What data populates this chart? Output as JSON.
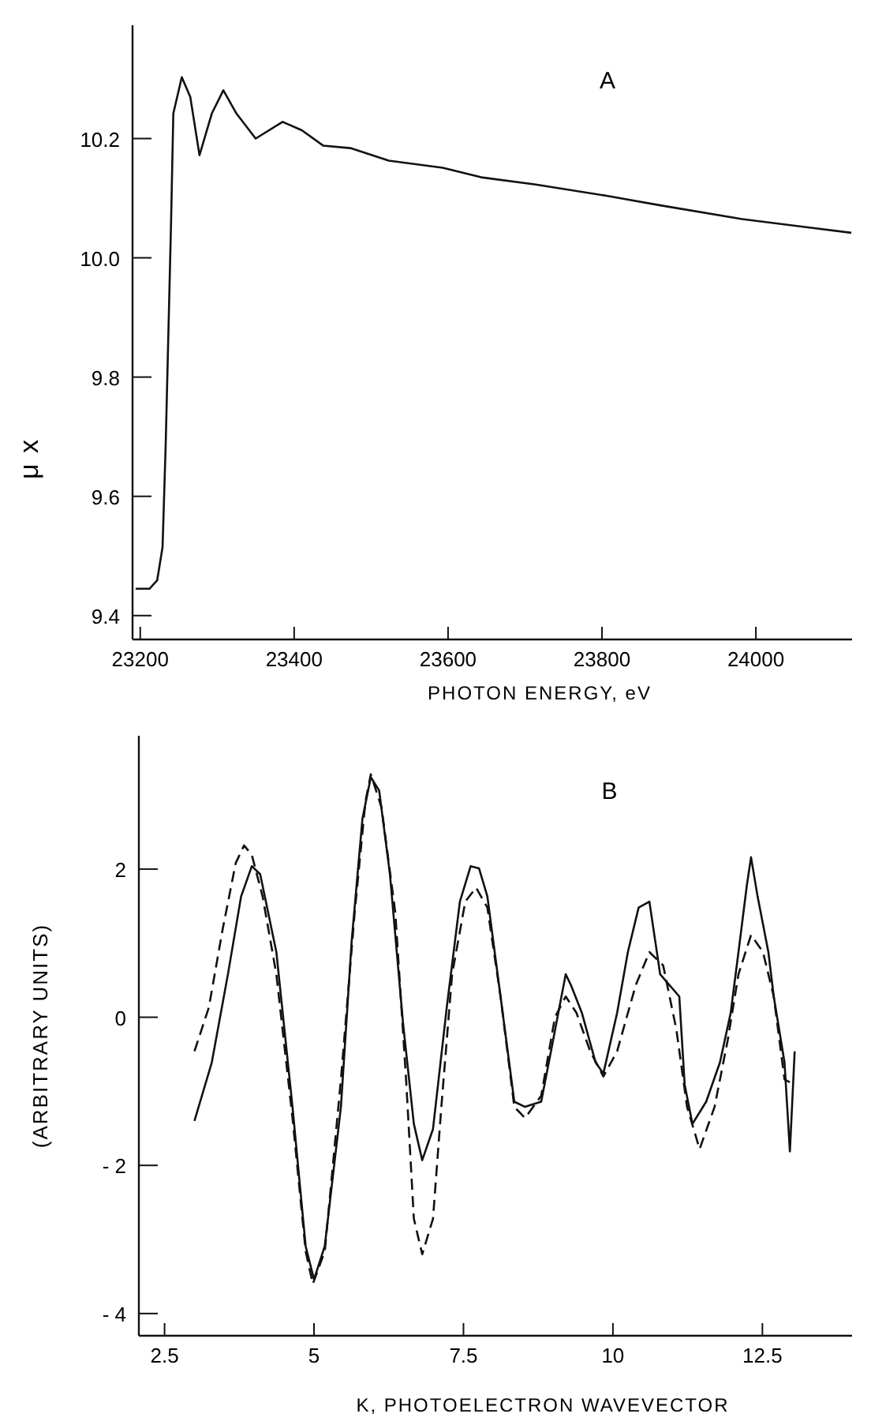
{
  "chart_data": [
    {
      "type": "line",
      "xlabel": "PHOTON ENERGY, eV",
      "ylabel": "μ x",
      "annotations": [
        "A"
      ],
      "xlim": [
        23190,
        24125
      ],
      "ylim": [
        9.36,
        10.39
      ],
      "xticks": [
        23200,
        23400,
        23600,
        23800,
        24000
      ],
      "yticks": [
        9.4,
        9.6,
        9.8,
        {
          "value": 10.0,
          "label": "10.0"
        },
        10.2
      ],
      "series": [
        {
          "color": "#111111",
          "line_style": "solid",
          "x": [
            23194,
            23212,
            23222,
            23229,
            23233,
            23240,
            23243,
            23254,
            23265,
            23277,
            23293,
            23308,
            23325,
            23350,
            23385,
            23410,
            23438,
            23473,
            23523,
            23593,
            23643,
            23714,
            23806,
            23876,
            23982,
            24124
          ],
          "values": [
            9.445,
            9.445,
            9.459,
            9.515,
            9.683,
            10.056,
            10.242,
            10.303,
            10.27,
            10.172,
            10.242,
            10.281,
            10.242,
            10.2,
            10.228,
            10.214,
            10.188,
            10.184,
            10.163,
            10.151,
            10.135,
            10.123,
            10.104,
            10.088,
            10.065,
            10.042
          ]
        }
      ]
    },
    {
      "type": "line",
      "xlabel": "K, PHOTOELECTRON WAVEVECTOR",
      "ylabel": "(ARBITRARY UNITS)",
      "annotations": [
        "B"
      ],
      "xlim": [
        2.07,
        14
      ],
      "ylim": [
        -4.3,
        3.8
      ],
      "xticks": [
        2.5,
        5,
        7.5,
        10,
        12.5
      ],
      "yticks": [
        {
          "value": -4,
          "label": "- 4"
        },
        {
          "value": -2,
          "label": "- 2"
        },
        0,
        2
      ],
      "series": [
        {
          "color": "#111111",
          "line_style": "solid",
          "x": [
            3.0,
            3.29,
            3.56,
            3.78,
            3.96,
            4.1,
            4.37,
            4.64,
            4.86,
            5.0,
            5.18,
            5.45,
            5.63,
            5.81,
            5.95,
            6.09,
            6.27,
            6.49,
            6.67,
            6.81,
            6.99,
            7.22,
            7.44,
            7.62,
            7.76,
            7.9,
            8.12,
            8.35,
            8.53,
            8.8,
            8.98,
            9.21,
            9.3,
            9.48,
            9.71,
            9.84,
            10.07,
            10.25,
            10.43,
            10.61,
            10.79,
            11.11,
            11.2,
            11.33,
            11.56,
            11.79,
            11.97,
            12.1,
            12.24,
            12.31,
            12.42,
            12.6,
            12.69,
            12.87,
            12.96,
            13.04
          ],
          "values": [
            -1.4,
            -0.61,
            0.58,
            1.63,
            2.04,
            1.93,
            0.88,
            -1.21,
            -3.09,
            -3.54,
            -3.09,
            -1.21,
            1.03,
            2.68,
            3.24,
            3.06,
            1.93,
            -0.09,
            -1.44,
            -1.93,
            -1.51,
            0.13,
            1.56,
            2.04,
            2.01,
            1.63,
            0.28,
            -1.14,
            -1.21,
            -1.14,
            -0.39,
            0.58,
            0.43,
            0.06,
            -0.61,
            -0.76,
            0.06,
            0.88,
            1.48,
            1.56,
            0.58,
            0.28,
            -0.91,
            -1.44,
            -1.14,
            -0.61,
            0.06,
            0.88,
            1.78,
            2.16,
            1.63,
            0.88,
            0.28,
            -0.61,
            -1.81,
            -0.46
          ]
        },
        {
          "color": "#111111",
          "line_style": "dashed",
          "x": [
            3.0,
            3.24,
            3.47,
            3.69,
            3.83,
            3.96,
            4.14,
            4.37,
            4.64,
            4.86,
            4.98,
            5.18,
            5.45,
            5.68,
            5.86,
            5.95,
            6.13,
            6.36,
            6.54,
            6.67,
            6.81,
            6.99,
            7.13,
            7.31,
            7.53,
            7.71,
            7.9,
            8.12,
            8.35,
            8.53,
            8.8,
            9.03,
            9.21,
            9.39,
            9.62,
            9.84,
            10.07,
            10.38,
            10.61,
            10.84,
            11.06,
            11.24,
            11.45,
            11.7,
            11.92,
            12.1,
            12.31,
            12.51,
            12.69,
            12.87,
            13.04
          ],
          "values": [
            -0.46,
            0.13,
            1.18,
            2.08,
            2.32,
            2.19,
            1.63,
            0.58,
            -1.36,
            -3.16,
            -3.6,
            -3.16,
            -0.84,
            1.41,
            2.91,
            3.28,
            2.83,
            1.41,
            -0.84,
            -2.72,
            -3.2,
            -2.72,
            -1.21,
            0.58,
            1.56,
            1.75,
            1.48,
            0.28,
            -1.21,
            -1.36,
            -1.06,
            0.0,
            0.28,
            0.06,
            -0.46,
            -0.8,
            -0.46,
            0.43,
            0.88,
            0.7,
            -0.16,
            -1.21,
            -1.78,
            -1.21,
            -0.31,
            0.58,
            1.11,
            0.88,
            0.28,
            -0.84,
            -0.91
          ]
        }
      ]
    }
  ]
}
